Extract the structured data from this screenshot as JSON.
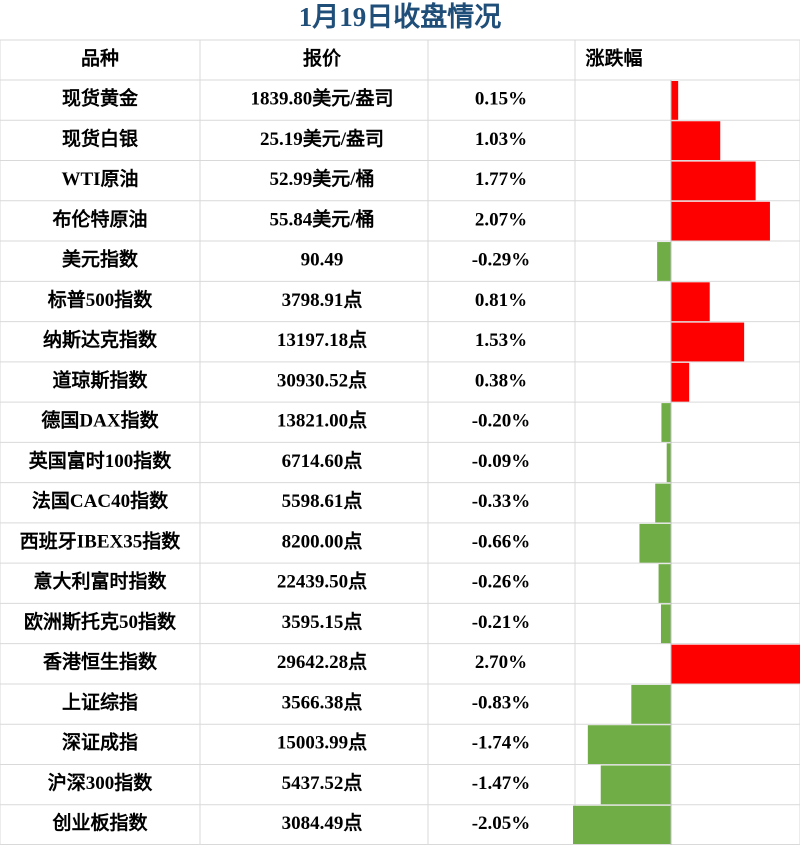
{
  "table": {
    "title": "1月19日收盘情况",
    "columns": [
      "品种",
      "报价",
      "涨跌幅"
    ],
    "rows": [
      {
        "name": "现货黄金",
        "price": "1839.80美元/盎司",
        "change": 0.15,
        "change_label": "0.15%"
      },
      {
        "name": "现货白银",
        "price": "25.19美元/盎司",
        "change": 1.03,
        "change_label": "1.03%"
      },
      {
        "name": "WTI原油",
        "price": "52.99美元/桶",
        "change": 1.77,
        "change_label": "1.77%"
      },
      {
        "name": "布伦特原油",
        "price": "55.84美元/桶",
        "change": 2.07,
        "change_label": "2.07%"
      },
      {
        "name": "美元指数",
        "price": "90.49",
        "change": -0.29,
        "change_label": "-0.29%"
      },
      {
        "name": "标普500指数",
        "price": "3798.91点",
        "change": 0.81,
        "change_label": "0.81%"
      },
      {
        "name": "纳斯达克指数",
        "price": "13197.18点",
        "change": 1.53,
        "change_label": "1.53%"
      },
      {
        "name": "道琼斯指数",
        "price": "30930.52点",
        "change": 0.38,
        "change_label": "0.38%"
      },
      {
        "name": "德国DAX指数",
        "price": "13821.00点",
        "change": -0.2,
        "change_label": "-0.20%"
      },
      {
        "name": "英国富时100指数",
        "price": "6714.60点",
        "change": -0.09,
        "change_label": "-0.09%"
      },
      {
        "name": "法国CAC40指数",
        "price": "5598.61点",
        "change": -0.33,
        "change_label": "-0.33%"
      },
      {
        "name": "西班牙IBEX35指数",
        "price": "8200.00点",
        "change": -0.66,
        "change_label": "-0.66%"
      },
      {
        "name": "意大利富时指数",
        "price": "22439.50点",
        "change": -0.26,
        "change_label": "-0.26%"
      },
      {
        "name": "欧洲斯托克50指数",
        "price": "3595.15点",
        "change": -0.21,
        "change_label": "-0.21%"
      },
      {
        "name": "香港恒生指数",
        "price": "29642.28点",
        "change": 2.7,
        "change_label": "2.70%"
      },
      {
        "name": "上证综指",
        "price": "3566.38点",
        "change": -0.83,
        "change_label": "-0.83%"
      },
      {
        "name": "深证成指",
        "price": "15003.99点",
        "change": -1.74,
        "change_label": "-1.74%"
      },
      {
        "name": "沪深300指数",
        "price": "5437.52点",
        "change": -1.47,
        "change_label": "-1.47%"
      },
      {
        "name": "创业板指数",
        "price": "3084.49点",
        "change": -2.05,
        "change_label": "-2.05%"
      }
    ],
    "up_color": "#ff0000",
    "down_color": "#70ad47"
  }
}
